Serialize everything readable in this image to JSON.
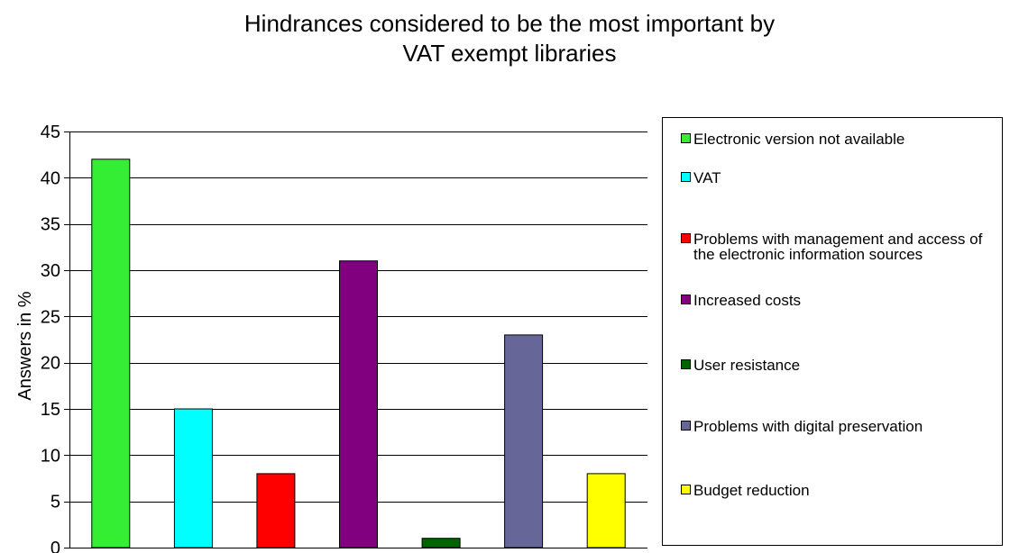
{
  "chart_data": {
    "type": "bar",
    "title": "Hindrances considered to be the most important by VAT exempt libraries",
    "ylabel": "Answers in %",
    "xlabel": "",
    "ylim": [
      0,
      45
    ],
    "yticks": [
      0,
      5,
      10,
      15,
      20,
      25,
      30,
      35,
      40,
      45
    ],
    "grid": true,
    "legend_position": "right",
    "categories": [
      "Electronic version not available",
      "VAT",
      "Problems with management and access of the electronic information sources",
      "Increased costs",
      "User resistance",
      "Problems with digital preservation",
      "Budget reduction"
    ],
    "values": [
      42,
      15,
      8,
      31,
      1,
      23,
      8
    ],
    "colors": [
      "#33ee33",
      "#00ffff",
      "#ff0000",
      "#800080",
      "#006400",
      "#666699",
      "#ffff00"
    ]
  }
}
